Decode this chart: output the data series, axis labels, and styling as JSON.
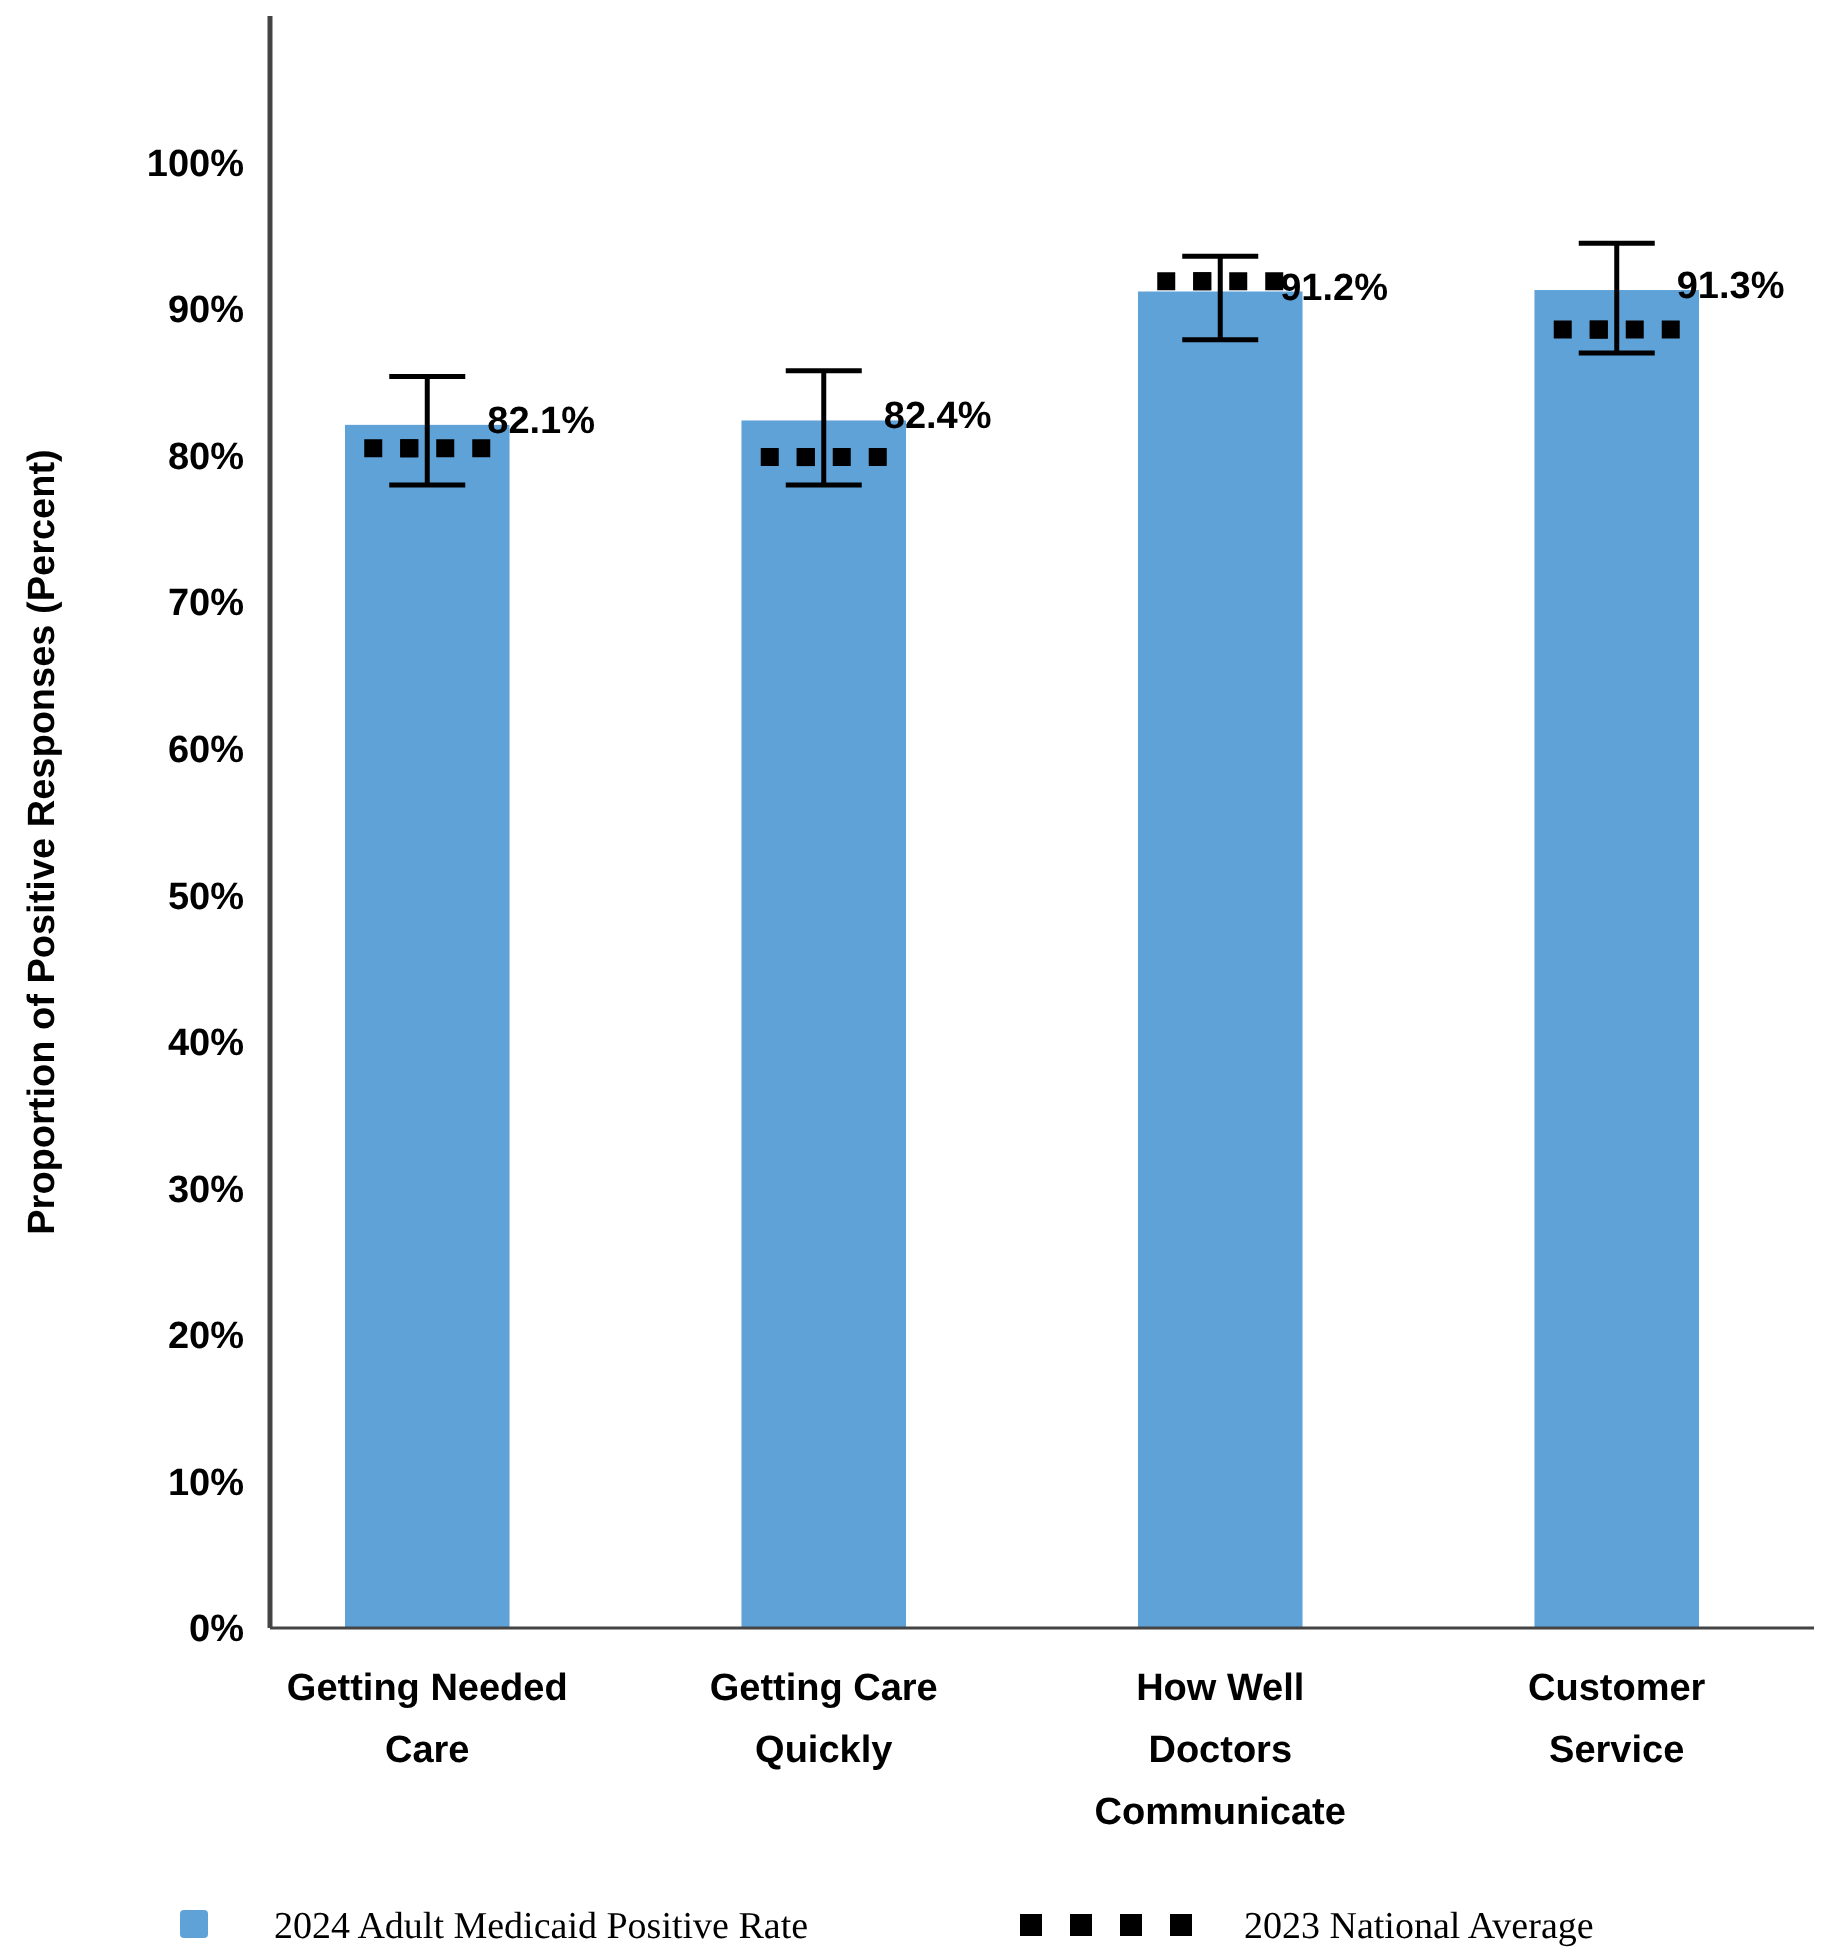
{
  "chart_data": {
    "type": "bar",
    "ylabel": "Proportion of Positive Responses (Percent)",
    "categories": [
      "Getting Needed Care",
      "Getting Care Quickly",
      "How Well Doctors Communicate",
      "Customer Service"
    ],
    "ylim": [
      0,
      110
    ],
    "yticks": [
      {
        "value": 0,
        "label": "0%"
      },
      {
        "value": 10,
        "label": "10%"
      },
      {
        "value": 20,
        "label": "20%"
      },
      {
        "value": 30,
        "label": "30%"
      },
      {
        "value": 40,
        "label": "40%"
      },
      {
        "value": 50,
        "label": "50%"
      },
      {
        "value": 60,
        "label": "60%"
      },
      {
        "value": 70,
        "label": "70%"
      },
      {
        "value": 80,
        "label": "80%"
      },
      {
        "value": 90,
        "label": "90%"
      },
      {
        "value": 100,
        "label": "100%"
      }
    ],
    "grid": false,
    "legend": "bottom",
    "series": [
      {
        "name": "2024 Adult Medicaid Positive Rate",
        "color": "#5fa2d8",
        "values": [
          82.1,
          82.4,
          91.2,
          91.3
        ],
        "value_labels": [
          "82.1%",
          "82.4%",
          "91.2%",
          "91.3%"
        ],
        "errors": [
          [
            78.0,
            85.4
          ],
          [
            78.0,
            85.8
          ],
          [
            87.9,
            93.6
          ],
          [
            87.0,
            94.5
          ]
        ]
      },
      {
        "name": "2023 National Average",
        "type": "scatter",
        "marker": "square",
        "color": "#000000",
        "values": [
          80.5,
          79.9,
          91.9,
          88.6
        ]
      }
    ]
  }
}
